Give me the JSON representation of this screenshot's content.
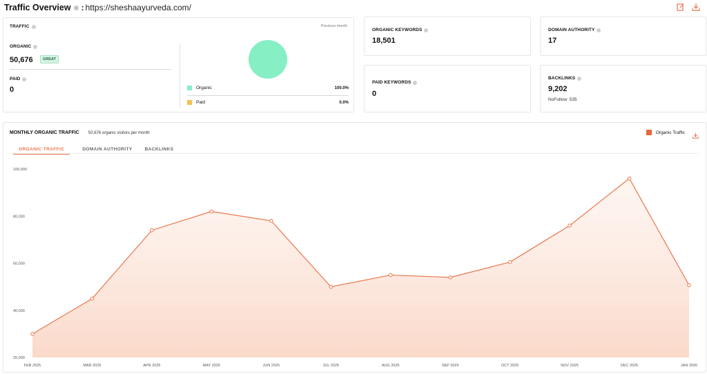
{
  "header": {
    "title": "Traffic Overview",
    "separator": ":",
    "url": "https://sheshaayurveda.com/"
  },
  "traffic": {
    "label": "TRAFFIC",
    "period": "Previous month",
    "organic_label": "ORGANIC",
    "organic_value": "50,676",
    "organic_badge": "GREAT",
    "paid_label": "PAID",
    "paid_value": "0",
    "legend": [
      {
        "name": "Organic",
        "percent": "100.0%",
        "color": "#86efc4"
      },
      {
        "name": "Paid",
        "percent": "0.0%",
        "color": "#f2c04f"
      }
    ]
  },
  "organic_keywords": {
    "label": "ORGANIC KEYWORDS",
    "value": "18,501"
  },
  "paid_keywords": {
    "label": "PAID KEYWORDS",
    "value": "0"
  },
  "domain_authority": {
    "label": "DOMAIN AUTHORITY",
    "value": "17"
  },
  "backlinks": {
    "label": "BACKLINKS",
    "value": "9,202",
    "nofollow": "NoFollow: 535"
  },
  "monthly": {
    "title": "MONTHLY ORGANIC TRAFFIC",
    "subtitle": "50,676 organic visitors per month",
    "legend_label": "Organic Traffic",
    "legend_color": "#e8673a",
    "tabs": [
      "ORGANIC TRAFFIC",
      "DOMAIN AUTHORITY",
      "BACKLINKS"
    ]
  },
  "chart_data": {
    "type": "area",
    "categories": [
      "FEB 2025",
      "MAR 2025",
      "APR 2025",
      "MAY 2025",
      "JUN 2025",
      "JUL 2025",
      "AUG 2025",
      "SEP 2025",
      "OCT 2025",
      "NOV 2025",
      "DEC 2025",
      "JAN 2026"
    ],
    "series": [
      {
        "name": "Organic Traffic",
        "values": [
          30000,
          45000,
          74000,
          82000,
          78000,
          50000,
          55000,
          54000,
          60500,
          76000,
          96000,
          50676
        ],
        "color": "#e8764b"
      }
    ],
    "yticks": [
      "20,000",
      "40,000",
      "60,000",
      "80,000",
      "100,000"
    ],
    "ytick_values": [
      20000,
      40000,
      60000,
      80000,
      100000
    ],
    "ylim": [
      20000,
      100000
    ],
    "grid": false,
    "legend": "top-right"
  }
}
